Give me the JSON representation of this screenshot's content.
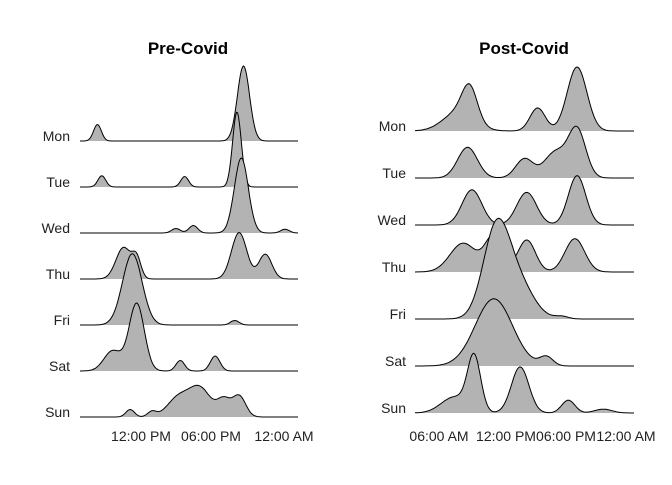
{
  "colors": {
    "fill": "#b3b3b3",
    "line": "#000000",
    "background": "#ffffff"
  },
  "chart_data": [
    {
      "type": "area",
      "subtype": "ridgeline",
      "title": "Pre-Covid",
      "categories": [
        "Mon",
        "Tue",
        "Wed",
        "Thu",
        "Fri",
        "Sat",
        "Sun"
      ],
      "x_tick_labels": [
        "12:00 PM",
        "06:00 PM",
        "12:00 AM"
      ],
      "grid": false,
      "legend": "none",
      "rows": [
        {
          "name": "Mon",
          "peaks": [
            {
              "center": 0.08,
              "height": 0.22,
              "width": 0.018
            },
            {
              "center": 0.75,
              "height": 1.0,
              "width": 0.028
            }
          ]
        },
        {
          "name": "Tue",
          "peaks": [
            {
              "center": 0.1,
              "height": 0.15,
              "width": 0.018
            },
            {
              "center": 0.48,
              "height": 0.14,
              "width": 0.018
            },
            {
              "center": 0.72,
              "height": 1.0,
              "width": 0.02
            }
          ]
        },
        {
          "name": "Wed",
          "peaks": [
            {
              "center": 0.44,
              "height": 0.06,
              "width": 0.02
            },
            {
              "center": 0.52,
              "height": 0.1,
              "width": 0.02
            },
            {
              "center": 0.74,
              "height": 1.0,
              "width": 0.032
            },
            {
              "center": 0.94,
              "height": 0.05,
              "width": 0.02
            }
          ]
        },
        {
          "name": "Thu",
          "peaks": [
            {
              "center": 0.2,
              "height": 0.42,
              "width": 0.035
            },
            {
              "center": 0.26,
              "height": 0.25,
              "width": 0.02
            },
            {
              "center": 0.73,
              "height": 0.62,
              "width": 0.035
            },
            {
              "center": 0.85,
              "height": 0.33,
              "width": 0.03
            }
          ]
        },
        {
          "name": "Fri",
          "peaks": [
            {
              "center": 0.24,
              "height": 0.95,
              "width": 0.045
            },
            {
              "center": 0.71,
              "height": 0.06,
              "width": 0.02
            }
          ]
        },
        {
          "name": "Sat",
          "peaks": [
            {
              "center": 0.15,
              "height": 0.27,
              "width": 0.04
            },
            {
              "center": 0.26,
              "height": 0.9,
              "width": 0.035
            },
            {
              "center": 0.46,
              "height": 0.14,
              "width": 0.02
            },
            {
              "center": 0.62,
              "height": 0.2,
              "width": 0.022
            }
          ]
        },
        {
          "name": "Sun",
          "peaks": [
            {
              "center": 0.23,
              "height": 0.1,
              "width": 0.02
            },
            {
              "center": 0.33,
              "height": 0.07,
              "width": 0.02
            },
            {
              "center": 0.45,
              "height": 0.25,
              "width": 0.05
            },
            {
              "center": 0.55,
              "height": 0.38,
              "width": 0.05
            },
            {
              "center": 0.66,
              "height": 0.22,
              "width": 0.03
            },
            {
              "center": 0.73,
              "height": 0.28,
              "width": 0.03
            }
          ]
        }
      ]
    },
    {
      "type": "area",
      "subtype": "ridgeline",
      "title": "Post-Covid",
      "categories": [
        "Mon",
        "Tue",
        "Wed",
        "Thu",
        "Fri",
        "Sat",
        "Sun"
      ],
      "x_tick_labels": [
        "06:00 AM",
        "12:00 PM",
        "06:00 PM",
        "12:00 AM"
      ],
      "grid": false,
      "legend": "none",
      "rows": [
        {
          "name": "Mon",
          "peaks": [
            {
              "center": 0.2,
              "height": 0.3,
              "width": 0.07
            },
            {
              "center": 0.25,
              "height": 0.5,
              "width": 0.035
            },
            {
              "center": 0.56,
              "height": 0.36,
              "width": 0.035
            },
            {
              "center": 0.74,
              "height": 1.0,
              "width": 0.045
            }
          ]
        },
        {
          "name": "Tue",
          "peaks": [
            {
              "center": 0.24,
              "height": 0.48,
              "width": 0.045
            },
            {
              "center": 0.5,
              "height": 0.3,
              "width": 0.04
            },
            {
              "center": 0.64,
              "height": 0.4,
              "width": 0.05
            },
            {
              "center": 0.74,
              "height": 0.75,
              "width": 0.04
            }
          ]
        },
        {
          "name": "Wed",
          "peaks": [
            {
              "center": 0.26,
              "height": 0.55,
              "width": 0.045
            },
            {
              "center": 0.51,
              "height": 0.51,
              "width": 0.045
            },
            {
              "center": 0.74,
              "height": 0.77,
              "width": 0.04
            }
          ]
        },
        {
          "name": "Thu",
          "peaks": [
            {
              "center": 0.22,
              "height": 0.45,
              "width": 0.06
            },
            {
              "center": 0.36,
              "height": 0.55,
              "width": 0.04
            },
            {
              "center": 0.51,
              "height": 0.5,
              "width": 0.04
            },
            {
              "center": 0.73,
              "height": 0.52,
              "width": 0.045
            }
          ]
        },
        {
          "name": "Fri",
          "peaks": [
            {
              "center": 0.37,
              "height": 1.35,
              "width": 0.06
            },
            {
              "center": 0.47,
              "height": 0.55,
              "width": 0.07
            },
            {
              "center": 0.67,
              "height": 0.04,
              "width": 0.03
            }
          ]
        },
        {
          "name": "Sat",
          "peaks": [
            {
              "center": 0.36,
              "height": 1.05,
              "width": 0.085
            },
            {
              "center": 0.6,
              "height": 0.14,
              "width": 0.03
            }
          ]
        },
        {
          "name": "Sun",
          "peaks": [
            {
              "center": 0.18,
              "height": 0.25,
              "width": 0.06
            },
            {
              "center": 0.27,
              "height": 0.85,
              "width": 0.03
            },
            {
              "center": 0.48,
              "height": 0.72,
              "width": 0.04
            },
            {
              "center": 0.7,
              "height": 0.2,
              "width": 0.03
            },
            {
              "center": 0.86,
              "height": 0.06,
              "width": 0.04
            }
          ]
        }
      ]
    }
  ]
}
